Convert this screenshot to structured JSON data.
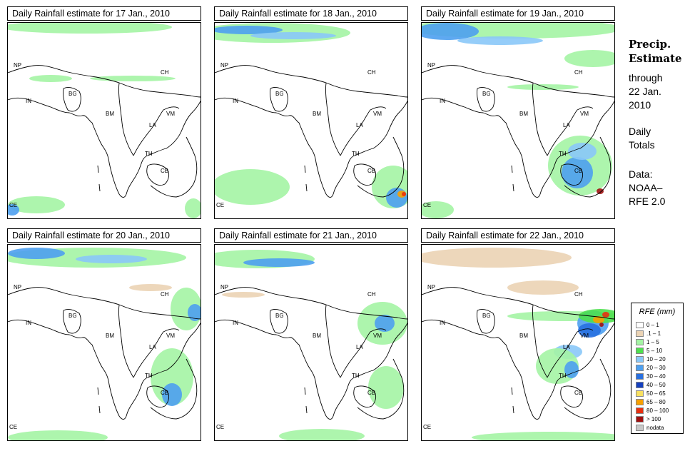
{
  "panels": [
    {
      "title": "Daily Rainfall estimate for  17 Jan., 2010",
      "day": 17
    },
    {
      "title": "Daily Rainfall estimate for  18 Jan., 2010",
      "day": 18
    },
    {
      "title": "Daily Rainfall estimate for  19 Jan., 2010",
      "day": 19
    },
    {
      "title": "Daily Rainfall estimate for  20 Jan., 2010",
      "day": 20
    },
    {
      "title": "Daily Rainfall estimate for  21 Jan., 2010",
      "day": 21
    },
    {
      "title": "Daily Rainfall estimate for  22 Jan., 2010",
      "day": 22
    }
  ],
  "country_labels": [
    "NP",
    "CH",
    "IN",
    "BG",
    "BM",
    "VM",
    "LA",
    "TH",
    "CB",
    "CE"
  ],
  "sidebar": {
    "title_line1": "Precip.",
    "title_line2": "Estimate",
    "through_line1": "through",
    "through_line2": "22 Jan.",
    "through_line3": "2010",
    "daily_line1": "Daily",
    "daily_line2": "Totals",
    "data_line1": "Data:",
    "data_line2": "NOAA–",
    "data_line3": "RFE 2.0"
  },
  "legend": {
    "title": "RFE (mm)",
    "items": [
      {
        "label": "0 – 1",
        "color": "#fefefe"
      },
      {
        "label": ".1 – 1",
        "color": "#ebd3b4"
      },
      {
        "label": "1 – 5",
        "color": "#a4f4a4"
      },
      {
        "label": "5 – 10",
        "color": "#4ee04e"
      },
      {
        "label": "10 – 20",
        "color": "#8ac8f8"
      },
      {
        "label": "20 – 30",
        "color": "#4ea0f0"
      },
      {
        "label": "30 – 40",
        "color": "#2870e0"
      },
      {
        "label": "40 – 50",
        "color": "#1440c0"
      },
      {
        "label": "50 – 65",
        "color": "#f8e060"
      },
      {
        "label": "65 – 80",
        "color": "#f8a000"
      },
      {
        "label": "80 – 100",
        "color": "#e83010"
      },
      {
        "label": "> 100",
        "color": "#a01010"
      },
      {
        "label": "nodata",
        "color": "#c8c8c8"
      }
    ]
  }
}
